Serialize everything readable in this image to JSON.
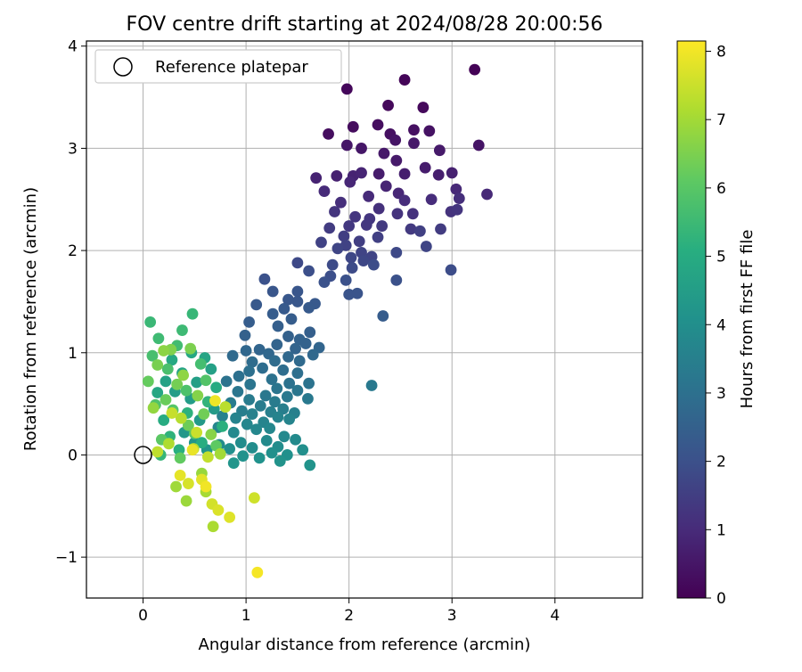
{
  "chart_data": {
    "type": "scatter",
    "title": "FOV centre drift starting at 2024/08/28 20:00:56",
    "xlabel": "Angular distance from reference (arcmin)",
    "ylabel": "Rotation from reference (arcmin)",
    "xlim": [
      -0.55,
      4.85
    ],
    "ylim": [
      -1.4,
      4.05
    ],
    "xticks": [
      "0",
      "1",
      "2",
      "3",
      "4"
    ],
    "yticks": [
      "−1",
      "0",
      "1",
      "2",
      "3",
      "4"
    ],
    "xtick_values": [
      0,
      1,
      2,
      3,
      4
    ],
    "ytick_values": [
      -1,
      0,
      1,
      2,
      3,
      4
    ],
    "grid": true,
    "legend": {
      "placement": "upper-left",
      "entries": [
        "Reference platepar"
      ]
    },
    "reference_point": {
      "x": 0,
      "y": 0,
      "label": "Reference platepar"
    },
    "colorbar": {
      "label": "Hours from first FF file",
      "colormap": "viridis",
      "range": [
        0,
        8.15
      ],
      "ticks": [
        "0",
        "1",
        "2",
        "3",
        "4",
        "5",
        "6",
        "7",
        "8"
      ],
      "tick_values": [
        0,
        1,
        2,
        3,
        4,
        5,
        6,
        7,
        8
      ]
    },
    "points": [
      [
        3.22,
        3.77,
        0.05
      ],
      [
        2.54,
        3.67,
        0.1
      ],
      [
        1.98,
        3.58,
        0.15
      ],
      [
        2.38,
        3.42,
        0.2
      ],
      [
        2.72,
        3.4,
        0.2
      ],
      [
        2.04,
        3.21,
        0.25
      ],
      [
        1.8,
        3.14,
        0.3
      ],
      [
        2.28,
        3.23,
        0.3
      ],
      [
        2.4,
        3.14,
        0.35
      ],
      [
        2.63,
        3.18,
        0.35
      ],
      [
        2.78,
        3.17,
        0.4
      ],
      [
        3.26,
        3.03,
        0.45
      ],
      [
        2.45,
        3.08,
        0.45
      ],
      [
        2.12,
        3.0,
        0.5
      ],
      [
        1.98,
        3.03,
        0.5
      ],
      [
        2.34,
        2.95,
        0.55
      ],
      [
        2.63,
        3.05,
        0.55
      ],
      [
        2.88,
        2.98,
        0.6
      ],
      [
        2.46,
        2.88,
        0.6
      ],
      [
        2.74,
        2.81,
        0.65
      ],
      [
        2.29,
        2.75,
        0.65
      ],
      [
        2.54,
        2.75,
        0.7
      ],
      [
        2.87,
        2.74,
        0.7
      ],
      [
        3.0,
        2.76,
        0.75
      ],
      [
        1.88,
        2.73,
        0.75
      ],
      [
        2.04,
        2.73,
        0.8
      ],
      [
        1.68,
        2.71,
        0.8
      ],
      [
        2.12,
        2.76,
        0.85
      ],
      [
        2.36,
        2.63,
        0.85
      ],
      [
        2.01,
        2.67,
        0.9
      ],
      [
        2.48,
        2.56,
        0.9
      ],
      [
        3.04,
        2.6,
        0.95
      ],
      [
        3.34,
        2.55,
        0.95
      ],
      [
        1.76,
        2.58,
        1.0
      ],
      [
        2.19,
        2.53,
        1.0
      ],
      [
        2.54,
        2.49,
        1.05
      ],
      [
        2.8,
        2.5,
        1.05
      ],
      [
        3.07,
        2.51,
        1.1
      ],
      [
        1.92,
        2.47,
        1.1
      ],
      [
        2.29,
        2.41,
        1.15
      ],
      [
        2.62,
        2.36,
        1.15
      ],
      [
        2.47,
        2.36,
        1.2
      ],
      [
        2.99,
        2.38,
        1.2
      ],
      [
        3.05,
        2.4,
        1.25
      ],
      [
        1.86,
        2.38,
        1.25
      ],
      [
        2.06,
        2.33,
        1.3
      ],
      [
        2.2,
        2.31,
        1.3
      ],
      [
        2.0,
        2.24,
        1.35
      ],
      [
        2.17,
        2.25,
        1.35
      ],
      [
        2.32,
        2.24,
        1.4
      ],
      [
        2.6,
        2.21,
        1.4
      ],
      [
        2.89,
        2.21,
        1.45
      ],
      [
        1.81,
        2.22,
        1.45
      ],
      [
        1.95,
        2.14,
        1.5
      ],
      [
        2.1,
        2.09,
        1.5
      ],
      [
        2.28,
        2.13,
        1.55
      ],
      [
        2.69,
        2.19,
        1.55
      ],
      [
        1.73,
        2.08,
        1.6
      ],
      [
        1.97,
        2.05,
        1.6
      ],
      [
        2.12,
        1.98,
        1.65
      ],
      [
        2.22,
        1.94,
        1.65
      ],
      [
        2.75,
        2.04,
        1.7
      ],
      [
        1.89,
        2.02,
        1.7
      ],
      [
        2.02,
        1.93,
        1.75
      ],
      [
        2.14,
        1.9,
        1.75
      ],
      [
        2.46,
        1.98,
        1.8
      ],
      [
        1.5,
        1.88,
        1.8
      ],
      [
        1.84,
        1.86,
        1.85
      ],
      [
        2.03,
        1.83,
        1.85
      ],
      [
        2.24,
        1.86,
        1.9
      ],
      [
        2.99,
        1.81,
        1.9
      ],
      [
        1.61,
        1.8,
        1.95
      ],
      [
        1.82,
        1.75,
        1.95
      ],
      [
        1.97,
        1.71,
        2.0
      ],
      [
        2.46,
        1.71,
        2.0
      ],
      [
        1.18,
        1.72,
        2.05
      ],
      [
        1.76,
        1.69,
        2.05
      ],
      [
        2.08,
        1.58,
        2.1
      ],
      [
        2.0,
        1.57,
        2.1
      ],
      [
        1.5,
        1.6,
        2.15
      ],
      [
        1.26,
        1.6,
        2.15
      ],
      [
        1.5,
        1.5,
        2.2
      ],
      [
        1.41,
        1.52,
        2.2
      ],
      [
        1.67,
        1.48,
        2.25
      ],
      [
        1.1,
        1.47,
        2.25
      ],
      [
        1.37,
        1.43,
        2.3
      ],
      [
        1.61,
        1.44,
        2.3
      ],
      [
        2.33,
        1.36,
        2.35
      ],
      [
        1.26,
        1.38,
        2.35
      ],
      [
        1.03,
        1.3,
        2.4
      ],
      [
        1.44,
        1.33,
        2.4
      ],
      [
        1.31,
        1.26,
        2.45
      ],
      [
        1.62,
        1.2,
        2.45
      ],
      [
        1.41,
        1.16,
        2.5
      ],
      [
        0.99,
        1.17,
        2.5
      ],
      [
        1.52,
        1.13,
        2.55
      ],
      [
        1.58,
        1.09,
        2.55
      ],
      [
        1.3,
        1.08,
        2.6
      ],
      [
        1.48,
        1.04,
        2.6
      ],
      [
        1.71,
        1.05,
        2.65
      ],
      [
        1.13,
        1.03,
        2.65
      ],
      [
        1.0,
        1.02,
        2.7
      ],
      [
        1.22,
        0.99,
        2.7
      ],
      [
        1.41,
        0.96,
        2.75
      ],
      [
        1.65,
        0.98,
        2.75
      ],
      [
        0.87,
        0.97,
        2.8
      ],
      [
        1.52,
        0.92,
        2.8
      ],
      [
        1.28,
        0.92,
        2.85
      ],
      [
        1.06,
        0.91,
        2.85
      ],
      [
        1.16,
        0.85,
        2.9
      ],
      [
        1.36,
        0.83,
        2.9
      ],
      [
        1.5,
        0.8,
        2.95
      ],
      [
        1.03,
        0.82,
        3.0
      ],
      [
        0.93,
        0.77,
        3.0
      ],
      [
        1.25,
        0.74,
        3.05
      ],
      [
        1.42,
        0.7,
        3.05
      ],
      [
        1.61,
        0.7,
        3.1
      ],
      [
        0.81,
        0.72,
        3.1
      ],
      [
        1.04,
        0.69,
        3.15
      ],
      [
        1.3,
        0.65,
        3.15
      ],
      [
        1.5,
        0.63,
        3.2
      ],
      [
        0.92,
        0.62,
        3.2
      ],
      [
        1.19,
        0.58,
        3.25
      ],
      [
        1.4,
        0.57,
        3.25
      ],
      [
        2.22,
        0.68,
        3.3
      ],
      [
        1.6,
        0.55,
        3.3
      ],
      [
        1.03,
        0.54,
        3.35
      ],
      [
        1.28,
        0.52,
        3.35
      ],
      [
        0.85,
        0.51,
        3.4
      ],
      [
        1.14,
        0.48,
        3.4
      ],
      [
        1.36,
        0.45,
        3.45
      ],
      [
        0.96,
        0.43,
        3.45
      ],
      [
        1.24,
        0.42,
        3.5
      ],
      [
        1.47,
        0.41,
        3.5
      ],
      [
        1.06,
        0.4,
        3.55
      ],
      [
        0.77,
        0.38,
        3.55
      ],
      [
        1.31,
        0.37,
        3.6
      ],
      [
        0.9,
        0.36,
        3.6
      ],
      [
        1.17,
        0.32,
        3.65
      ],
      [
        1.42,
        0.35,
        3.65
      ],
      [
        1.01,
        0.3,
        3.7
      ],
      [
        0.73,
        0.27,
        3.7
      ],
      [
        1.23,
        0.26,
        3.75
      ],
      [
        1.1,
        0.25,
        3.75
      ],
      [
        0.88,
        0.22,
        3.8
      ],
      [
        1.37,
        0.18,
        3.8
      ],
      [
        1.48,
        0.15,
        3.85
      ],
      [
        1.2,
        0.14,
        3.85
      ],
      [
        0.95,
        0.12,
        3.9
      ],
      [
        0.74,
        0.1,
        3.9
      ],
      [
        1.31,
        0.08,
        3.95
      ],
      [
        1.06,
        0.07,
        3.95
      ],
      [
        0.84,
        0.06,
        4.0
      ],
      [
        1.55,
        0.05,
        4.0
      ],
      [
        1.25,
        0.02,
        4.05
      ],
      [
        1.4,
        0.0,
        4.05
      ],
      [
        0.97,
        -0.01,
        4.1
      ],
      [
        1.13,
        -0.03,
        4.1
      ],
      [
        1.62,
        -0.1,
        4.15
      ],
      [
        1.33,
        -0.06,
        4.15
      ],
      [
        0.88,
        -0.08,
        4.2
      ],
      [
        0.62,
        0.05,
        4.2
      ],
      [
        0.5,
        0.12,
        4.25
      ],
      [
        0.4,
        0.22,
        4.3
      ],
      [
        0.55,
        0.34,
        4.35
      ],
      [
        0.69,
        0.45,
        4.4
      ],
      [
        0.46,
        0.55,
        4.45
      ],
      [
        0.31,
        0.62,
        4.5
      ],
      [
        0.52,
        0.71,
        4.55
      ],
      [
        0.66,
        0.84,
        4.6
      ],
      [
        0.22,
        0.72,
        4.65
      ],
      [
        0.38,
        0.8,
        4.7
      ],
      [
        0.6,
        0.95,
        4.75
      ],
      [
        0.14,
        0.61,
        4.8
      ],
      [
        0.47,
        1.0,
        4.85
      ],
      [
        0.28,
        0.93,
        4.9
      ],
      [
        0.71,
        0.66,
        4.95
      ],
      [
        0.2,
        0.34,
        5.0
      ],
      [
        0.57,
        0.12,
        5.05
      ],
      [
        0.35,
        0.05,
        5.1
      ],
      [
        0.77,
        0.28,
        5.15
      ],
      [
        0.43,
        0.41,
        5.2
      ],
      [
        0.26,
        0.18,
        5.25
      ],
      [
        0.63,
        0.52,
        5.3
      ],
      [
        0.17,
        0.0,
        5.35
      ],
      [
        0.48,
        1.38,
        5.4
      ],
      [
        0.07,
        1.3,
        5.45
      ],
      [
        0.38,
        1.22,
        5.5
      ],
      [
        0.15,
        1.14,
        5.55
      ],
      [
        0.33,
        1.07,
        5.6
      ],
      [
        0.56,
        0.89,
        5.65
      ],
      [
        0.09,
        0.97,
        5.7
      ],
      [
        0.24,
        0.84,
        5.75
      ],
      [
        0.42,
        0.63,
        5.8
      ],
      [
        0.12,
        0.49,
        5.85
      ],
      [
        0.61,
        0.73,
        5.9
      ],
      [
        0.29,
        0.44,
        5.95
      ],
      [
        0.5,
        0.21,
        6.0
      ],
      [
        0.18,
        0.15,
        6.05
      ],
      [
        0.71,
        0.09,
        6.1
      ],
      [
        0.36,
        -0.03,
        6.15
      ],
      [
        0.05,
        0.72,
        6.2
      ],
      [
        0.22,
        0.54,
        6.25
      ],
      [
        0.44,
        0.29,
        6.3
      ],
      [
        0.59,
        0.4,
        6.35
      ],
      [
        0.33,
        0.69,
        6.4
      ],
      [
        0.14,
        0.88,
        6.45
      ],
      [
        0.46,
        1.04,
        6.5
      ],
      [
        0.27,
        1.03,
        6.55
      ],
      [
        0.53,
        0.58,
        6.6
      ],
      [
        0.66,
        0.2,
        6.65
      ],
      [
        0.2,
        1.02,
        6.7
      ],
      [
        0.39,
        0.78,
        6.75
      ],
      [
        0.1,
        0.46,
        6.8
      ],
      [
        0.57,
        -0.18,
        6.85
      ],
      [
        0.42,
        -0.45,
        6.9
      ],
      [
        0.32,
        -0.31,
        6.95
      ],
      [
        0.75,
        0.01,
        7.0
      ],
      [
        0.61,
        -0.36,
        7.05
      ],
      [
        0.68,
        -0.7,
        7.1
      ],
      [
        0.25,
        0.11,
        7.15
      ],
      [
        0.49,
        0.06,
        7.2
      ],
      [
        0.37,
        0.36,
        7.25
      ],
      [
        0.8,
        0.47,
        7.3
      ],
      [
        0.14,
        0.03,
        7.35
      ],
      [
        0.63,
        -0.02,
        7.4
      ],
      [
        0.28,
        0.41,
        7.45
      ],
      [
        0.52,
        0.22,
        7.5
      ],
      [
        1.08,
        -0.42,
        7.55
      ],
      [
        0.67,
        -0.48,
        7.6
      ],
      [
        0.44,
        -0.28,
        7.65
      ],
      [
        0.73,
        -0.54,
        7.7
      ],
      [
        0.84,
        -0.61,
        7.75
      ],
      [
        0.57,
        -0.24,
        7.8
      ],
      [
        0.36,
        -0.2,
        7.85
      ],
      [
        0.48,
        0.05,
        7.9
      ],
      [
        0.7,
        0.53,
        7.95
      ],
      [
        0.61,
        -0.31,
        8.0
      ],
      [
        1.11,
        -1.15,
        8.05
      ]
    ]
  }
}
